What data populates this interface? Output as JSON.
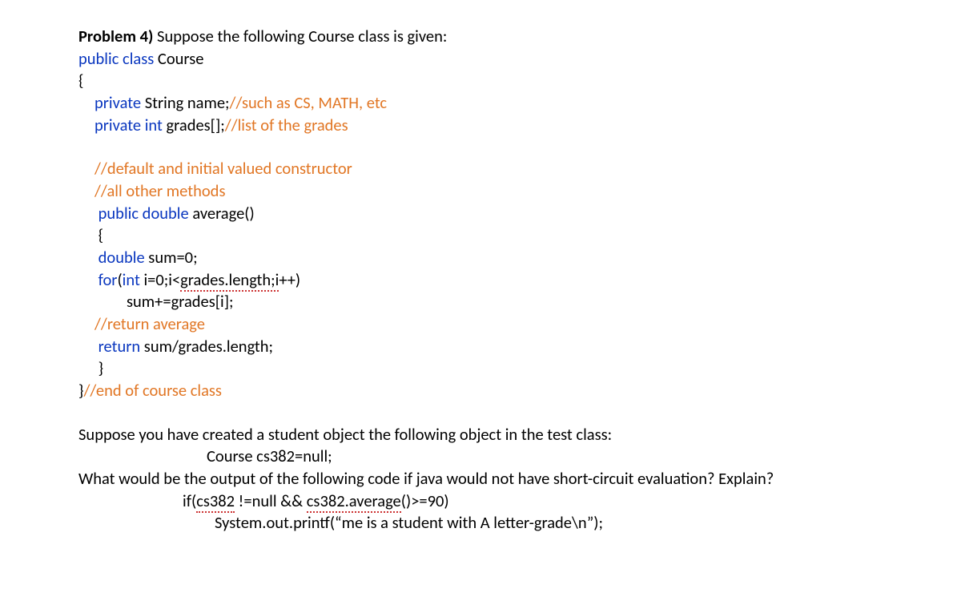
{
  "problem_label": "Problem 4) ",
  "problem_intro": "Suppose the following Course class is given:",
  "kw_public": "public",
  "kw_class": "class",
  "kw_private": "private",
  "kw_int": "int",
  "kw_double": "double",
  "kw_for": "for",
  "kw_return": "return",
  "cls_name": "Course",
  "field_string": " String name;",
  "comment_field1": "//such as CS, MATH, etc",
  "field_grades": " grades[];",
  "comment_field2": "//list of the grades",
  "comment_ctor": "//default and initial valued constructor",
  "comment_methods": "//all other methods",
  "method_average": " average()",
  "lbrace": "{",
  "rbrace": "}",
  "sum_decl": " sum=0;",
  "for_open": "(",
  "for_int": "int",
  "for_cond_pre": " i=0;i<",
  "for_grades_length": "grades.length;i",
  "for_inc": "++)",
  "sum_body": "sum+=grades[i];",
  "comment_return": "//return average",
  "return_expr": " sum/grades.length;",
  "comment_end": "//end of course class",
  "body_para1": "Suppose you have created a student object the following object in the test class:",
  "obj_decl": "Course cs382=null;",
  "body_para2": "What would be the output of the following code if java would not have short-circuit evaluation? Explain?",
  "if_open": "if(",
  "if_var1": "cs382",
  "if_mid": " !=null && ",
  "if_var2": "cs382.average",
  "if_tail": "()>=90)",
  "printf_line": "System.out.printf(“me is a student with A letter-grade\\n”);",
  "colors": {
    "blue": "#0a37bf",
    "orange": "#e17624",
    "black": "#000000",
    "underline": "#cc3333",
    "background": "#ffffff"
  },
  "typography": {
    "font_family": "Calibri",
    "font_size_pt": 15,
    "line_height": 1.35
  }
}
